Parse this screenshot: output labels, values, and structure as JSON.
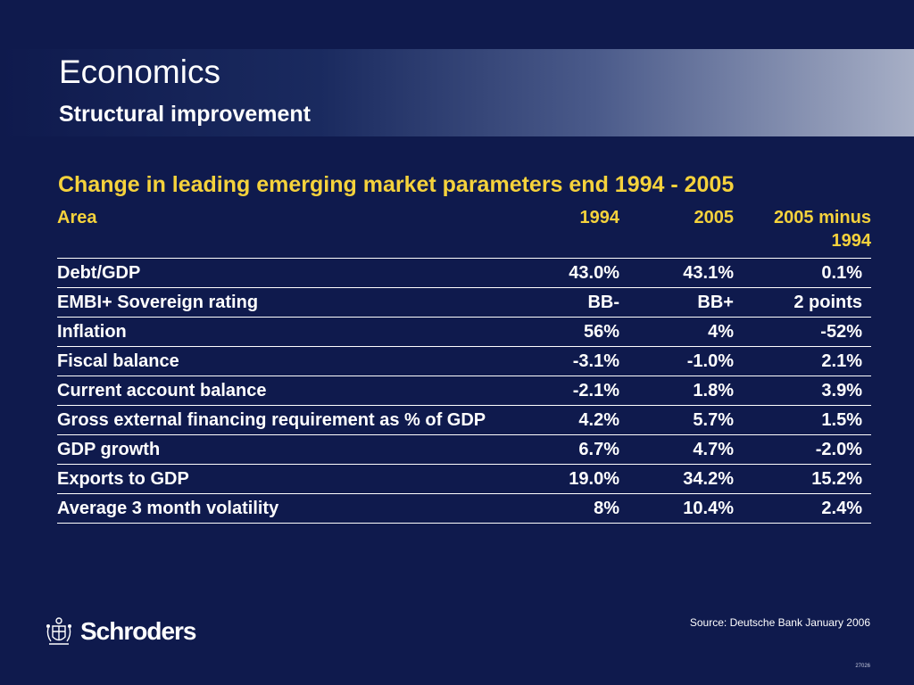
{
  "header": {
    "title": "Economics",
    "subtitle": "Structural improvement"
  },
  "table": {
    "title": "Change in leading emerging market parameters end 1994 - 2005",
    "columns": {
      "area": "Area",
      "y1994": "1994",
      "y2005": "2005",
      "diff_line1": "2005 minus",
      "diff_line2": "1994"
    },
    "rows": [
      {
        "area": "Debt/GDP",
        "y1994": "43.0%",
        "y2005": "43.1%",
        "diff": "0.1%"
      },
      {
        "area": "EMBI+ Sovereign rating",
        "y1994": "BB-",
        "y2005": "BB+",
        "diff": "2 points"
      },
      {
        "area": "Inflation",
        "y1994": "56%",
        "y2005": "4%",
        "diff": "-52%"
      },
      {
        "area": "Fiscal balance",
        "y1994": "-3.1%",
        "y2005": "-1.0%",
        "diff": "2.1%"
      },
      {
        "area": "Current account balance",
        "y1994": "-2.1%",
        "y2005": "1.8%",
        "diff": "3.9%"
      },
      {
        "area": "Gross external financing requirement as % of GDP",
        "y1994": "4.2%",
        "y2005": "5.7%",
        "diff": "1.5%"
      },
      {
        "area": "GDP growth",
        "y1994": "6.7%",
        "y2005": "4.7%",
        "diff": "-2.0%"
      },
      {
        "area": "Exports to GDP",
        "y1994": "19.0%",
        "y2005": "34.2%",
        "diff": "15.2%"
      },
      {
        "area": "Average 3 month volatility",
        "y1994": "8%",
        "y2005": "10.4%",
        "diff": "2.4%"
      }
    ]
  },
  "footer": {
    "brand": "Schroders",
    "crest_icon": "schroders-crest-icon",
    "source": "Source: Deutsche Bank January 2006",
    "doc_number": "27026"
  },
  "colors": {
    "background": "#0f1a4d",
    "accent": "#f5d23c",
    "text": "#ffffff"
  }
}
